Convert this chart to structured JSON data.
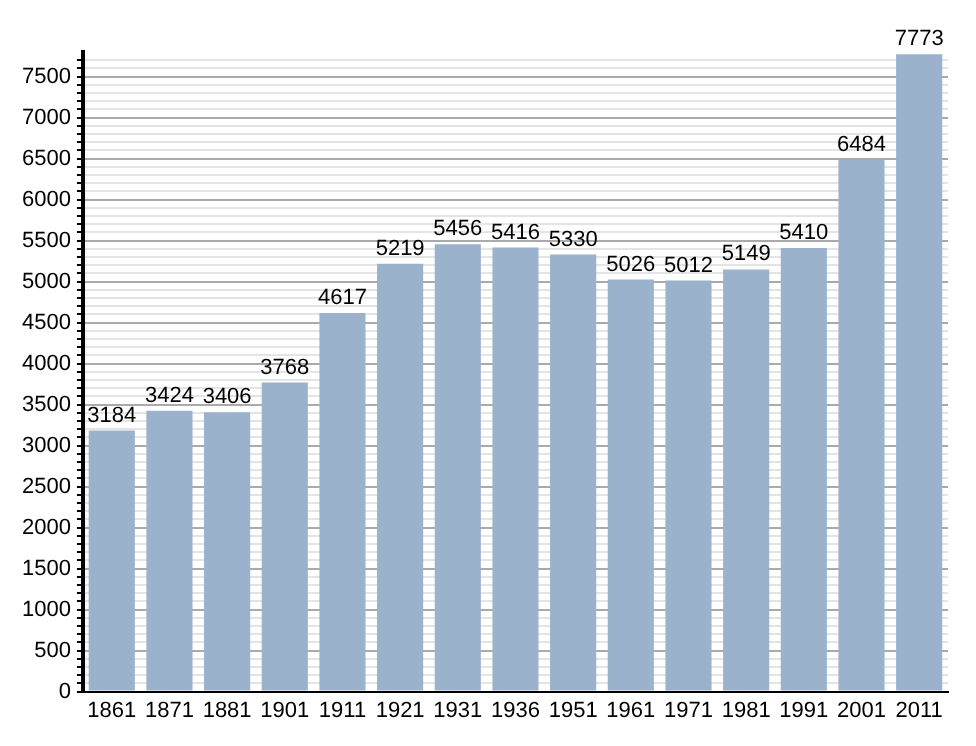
{
  "chart_data": {
    "type": "bar",
    "categories": [
      "1861",
      "1871",
      "1881",
      "1901",
      "1911",
      "1921",
      "1931",
      "1936",
      "1951",
      "1961",
      "1971",
      "1981",
      "1991",
      "2001",
      "2011"
    ],
    "values": [
      3184,
      3424,
      3406,
      3768,
      4617,
      5219,
      5456,
      5416,
      5330,
      5026,
      5012,
      5149,
      5410,
      6484,
      7773
    ],
    "color": "#9bb2cc",
    "ylim": [
      0,
      7800
    ],
    "yticks": [
      0,
      {
        "value": 100,
        "label": null
      },
      {
        "value": 200,
        "label": null
      },
      {
        "value": 300,
        "label": null
      },
      {
        "value": 400,
        "label": null
      },
      500,
      {
        "value": 600,
        "label": null
      },
      {
        "value": 700,
        "label": null
      },
      {
        "value": 800,
        "label": null
      },
      {
        "value": 900,
        "label": null
      },
      1000,
      {
        "value": 1100,
        "label": null
      },
      {
        "value": 1200,
        "label": null
      },
      {
        "value": 1300,
        "label": null
      },
      {
        "value": 1400,
        "label": null
      },
      1500,
      {
        "value": 1600,
        "label": null
      },
      {
        "value": 1700,
        "label": null
      },
      {
        "value": 1800,
        "label": null
      },
      {
        "value": 1900,
        "label": null
      },
      2000,
      {
        "value": 2100,
        "label": null
      },
      {
        "value": 2200,
        "label": null
      },
      {
        "value": 2300,
        "label": null
      },
      {
        "value": 2400,
        "label": null
      },
      2500,
      {
        "value": 2600,
        "label": null
      },
      {
        "value": 2700,
        "label": null
      },
      {
        "value": 2800,
        "label": null
      },
      {
        "value": 2900,
        "label": null
      },
      3000,
      {
        "value": 3100,
        "label": null
      },
      {
        "value": 3200,
        "label": null
      },
      {
        "value": 3300,
        "label": null
      },
      {
        "value": 3400,
        "label": null
      },
      3500,
      {
        "value": 3600,
        "label": null
      },
      {
        "value": 3700,
        "label": null
      },
      {
        "value": 3800,
        "label": null
      },
      {
        "value": 3900,
        "label": null
      },
      4000,
      {
        "value": 4100,
        "label": null
      },
      {
        "value": 4200,
        "label": null
      },
      {
        "value": 4300,
        "label": null
      },
      {
        "value": 4400,
        "label": null
      },
      4500,
      {
        "value": 4600,
        "label": null
      },
      {
        "value": 4700,
        "label": null
      },
      {
        "value": 4800,
        "label": null
      },
      {
        "value": 4900,
        "label": null
      },
      5000,
      {
        "value": 5100,
        "label": null
      },
      {
        "value": 5200,
        "label": null
      },
      {
        "value": 5300,
        "label": null
      },
      {
        "value": 5400,
        "label": null
      },
      5500,
      {
        "value": 5600,
        "label": null
      },
      {
        "value": 5700,
        "label": null
      },
      {
        "value": 5800,
        "label": null
      },
      {
        "value": 5900,
        "label": null
      },
      6000,
      {
        "value": 6100,
        "label": null
      },
      {
        "value": 6200,
        "label": null
      },
      {
        "value": 6300,
        "label": null
      },
      {
        "value": 6400,
        "label": null
      },
      6500,
      {
        "value": 6600,
        "label": null
      },
      {
        "value": 6700,
        "label": null
      },
      {
        "value": 6800,
        "label": null
      },
      {
        "value": 6900,
        "label": null
      },
      7000,
      {
        "value": 7100,
        "label": null
      },
      {
        "value": 7200,
        "label": null
      },
      {
        "value": 7300,
        "label": null
      },
      {
        "value": 7400,
        "label": null
      },
      7500,
      {
        "value": 7600,
        "label": null
      },
      {
        "value": 7700,
        "label": null
      }
    ],
    "grid": "y",
    "data_labels": true
  }
}
